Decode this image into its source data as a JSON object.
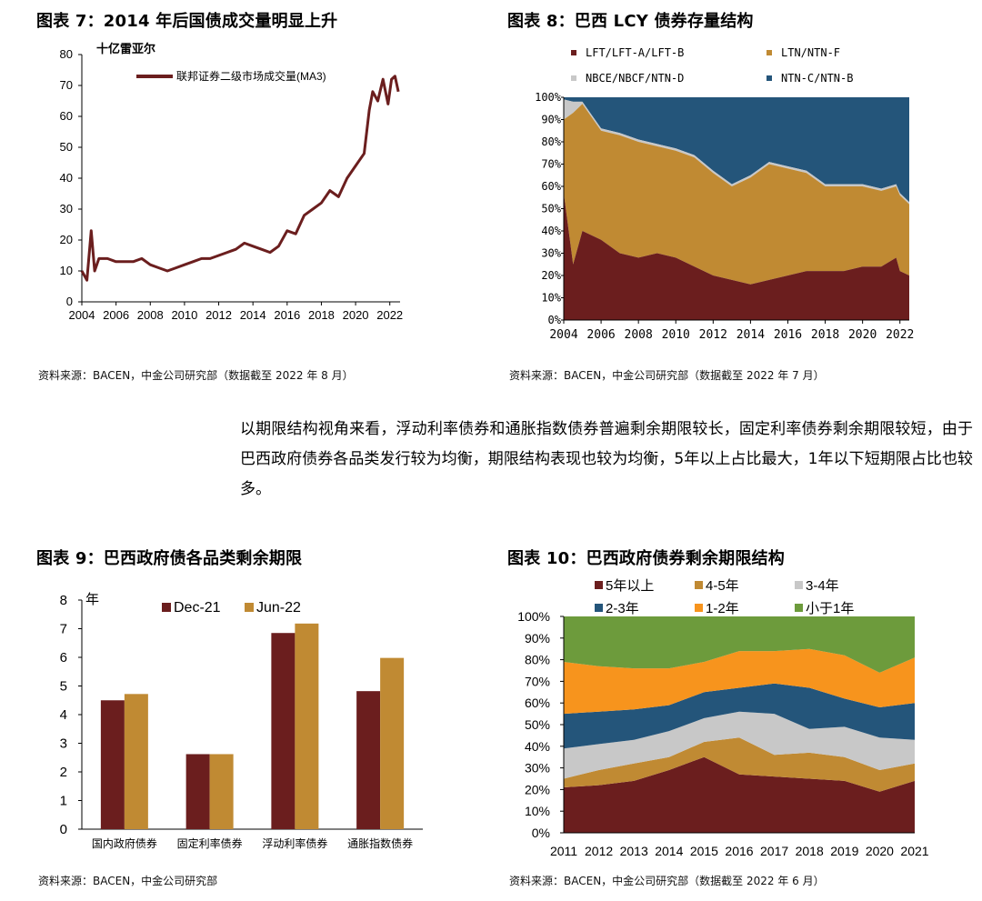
{
  "paragraph": "以期限结构视角来看，浮动利率债券和通胀指数债券普遍剩余期限较长，固定利率债券剩余期限较短，由于巴西政府债券各品类发行较为均衡，期限结构表现也较为均衡，5年以上占比最大，1年以下短期限占比也较多。",
  "colors": {
    "maroon": "#6B1E1E",
    "gold": "#C08A33",
    "lightgray": "#C8C8C8",
    "navy": "#24557A",
    "orange": "#F7941D",
    "green": "#6D9B3C"
  },
  "chart_data": [
    {
      "id": "fig7",
      "type": "line",
      "title": "图表 7：2014 年后国债成交量明显上升",
      "unit_label": "十亿雷亚尔",
      "series": [
        {
          "name": "联邦证券二级市场成交量(MA3)",
          "x": [
            2004.0,
            2004.3,
            2004.55,
            2004.75,
            2005.0,
            2005.5,
            2006.0,
            2006.5,
            2007.0,
            2007.5,
            2008.0,
            2008.5,
            2009.0,
            2009.5,
            2010.0,
            2010.5,
            2011.0,
            2011.5,
            2012.0,
            2012.5,
            2013.0,
            2013.5,
            2014.0,
            2014.5,
            2015.0,
            2015.5,
            2016.0,
            2016.5,
            2017.0,
            2017.5,
            2018.0,
            2018.5,
            2019.0,
            2019.5,
            2020.0,
            2020.5,
            2020.8,
            2021.0,
            2021.3,
            2021.6,
            2021.9,
            2022.1,
            2022.3,
            2022.5
          ],
          "y": [
            10,
            7,
            23,
            10,
            14,
            14,
            13,
            13,
            13,
            14,
            12,
            11,
            10,
            11,
            12,
            13,
            14,
            14,
            15,
            16,
            17,
            19,
            18,
            17,
            16,
            18,
            23,
            22,
            28,
            30,
            32,
            36,
            34,
            40,
            44,
            48,
            62,
            68,
            65,
            72,
            64,
            72,
            73,
            68
          ]
        }
      ],
      "xticks": [
        "2004",
        "2006",
        "2008",
        "2010",
        "2012",
        "2014",
        "2016",
        "2018",
        "2020",
        "2022"
      ],
      "yticks": [
        "0",
        "10",
        "20",
        "30",
        "40",
        "50",
        "60",
        "70",
        "80"
      ],
      "xlim": [
        2004,
        2022.6
      ],
      "ylim": [
        0,
        80
      ],
      "source": "资料来源：BACEN，中金公司研究部（数据截至 2022 年 8 月）"
    },
    {
      "id": "fig8",
      "type": "area",
      "title": "图表 8：巴西 LCY 债券存量结构",
      "series": [
        {
          "name": "LFT/LFT-A/LFT-B",
          "color": "#6B1E1E"
        },
        {
          "name": "LTN/NTN-F",
          "color": "#C08A33"
        },
        {
          "name": "NBCE/NBCF/NTN-D",
          "color": "#C8C8C8"
        },
        {
          "name": "NTN-C/NTN-B",
          "color": "#24557A"
        }
      ],
      "x": [
        2004.0,
        2004.5,
        2005.0,
        2006.0,
        2007.0,
        2008.0,
        2009.0,
        2010.0,
        2011.0,
        2012.0,
        2013.0,
        2014.0,
        2015.0,
        2016.0,
        2017.0,
        2018.0,
        2019.0,
        2020.0,
        2021.0,
        2021.8,
        2022.0,
        2022.5
      ],
      "stack_top": {
        "LFT/LFT-A/LFT-B": [
          57,
          25,
          40,
          36,
          30,
          28,
          30,
          28,
          24,
          20,
          18,
          16,
          18,
          20,
          22,
          22,
          22,
          24,
          24,
          28,
          22,
          20
        ],
        "LTN/NTN-F": [
          90,
          93,
          97,
          85,
          83,
          80,
          78,
          76,
          73,
          66,
          60,
          64,
          70,
          68,
          66,
          60,
          60,
          60,
          58,
          60,
          56,
          52
        ],
        "NBCE/NBCF/NTN-D": [
          99,
          98,
          98,
          86,
          84,
          81,
          79,
          77,
          74,
          67,
          61,
          65,
          71,
          69,
          67,
          61,
          61,
          61,
          59,
          61,
          57,
          53
        ]
      },
      "xticks": [
        "2004",
        "2006",
        "2008",
        "2010",
        "2012",
        "2014",
        "2016",
        "2018",
        "2020",
        "2022"
      ],
      "yticks": [
        "0%",
        "10%",
        "20%",
        "30%",
        "40%",
        "50%",
        "60%",
        "70%",
        "80%",
        "90%",
        "100%"
      ],
      "xlim": [
        2004,
        2022.5
      ],
      "ylim": [
        0,
        100
      ],
      "source": "资料来源：BACEN，中金公司研究部（数据截至 2022 年 7 月）"
    },
    {
      "id": "fig9",
      "type": "bar",
      "title": "图表 9：巴西政府债各品类剩余期限",
      "unit_label": "年",
      "categories": [
        "国内政府债券",
        "固定利率债券",
        "浮动利率债券",
        "通胀指数债券"
      ],
      "series": [
        {
          "name": "Dec-21",
          "color": "#6B1E1E",
          "values": [
            4.5,
            2.62,
            6.85,
            4.82
          ]
        },
        {
          "name": "Jun-22",
          "color": "#C08A33",
          "values": [
            4.72,
            2.62,
            7.18,
            5.98
          ]
        }
      ],
      "yticks": [
        "0",
        "1",
        "2",
        "3",
        "4",
        "5",
        "6",
        "7",
        "8"
      ],
      "ylim": [
        0,
        8
      ],
      "source": "资料来源：BACEN，中金公司研究部"
    },
    {
      "id": "fig10",
      "type": "area",
      "title": "图表 10：巴西政府债券剩余期限结构",
      "categories": [
        "2011",
        "2012",
        "2013",
        "2014",
        "2015",
        "2016",
        "2017",
        "2018",
        "2019",
        "2020",
        "2021"
      ],
      "series": [
        {
          "name": "5年以上",
          "color": "#6B1E1E",
          "values": [
            21,
            22,
            24,
            29,
            35,
            27,
            26,
            25,
            24,
            19,
            24
          ]
        },
        {
          "name": "4-5年",
          "color": "#C08A33",
          "values": [
            4,
            7,
            8,
            6,
            7,
            17,
            10,
            12,
            11,
            10,
            8
          ]
        },
        {
          "name": "3-4年",
          "color": "#C8C8C8",
          "values": [
            14,
            12,
            11,
            12,
            11,
            12,
            19,
            11,
            14,
            15,
            11
          ]
        },
        {
          "name": "2-3年",
          "color": "#24557A",
          "values": [
            16,
            15,
            14,
            12,
            12,
            11,
            14,
            19,
            13,
            14,
            17
          ]
        },
        {
          "name": "1-2年",
          "color": "#F7941D",
          "values": [
            24,
            21,
            19,
            17,
            14,
            17,
            15,
            18,
            20,
            16,
            21
          ]
        },
        {
          "name": "小于1年",
          "color": "#6D9B3C",
          "values": [
            21,
            23,
            24,
            24,
            21,
            16,
            16,
            15,
            18,
            26,
            19
          ]
        }
      ],
      "yticks": [
        "0%",
        "10%",
        "20%",
        "30%",
        "40%",
        "50%",
        "60%",
        "70%",
        "80%",
        "90%",
        "100%"
      ],
      "ylim": [
        0,
        100
      ],
      "source": "资料来源：BACEN，中金公司研究部（数据截至 2022 年 6 月）"
    }
  ]
}
